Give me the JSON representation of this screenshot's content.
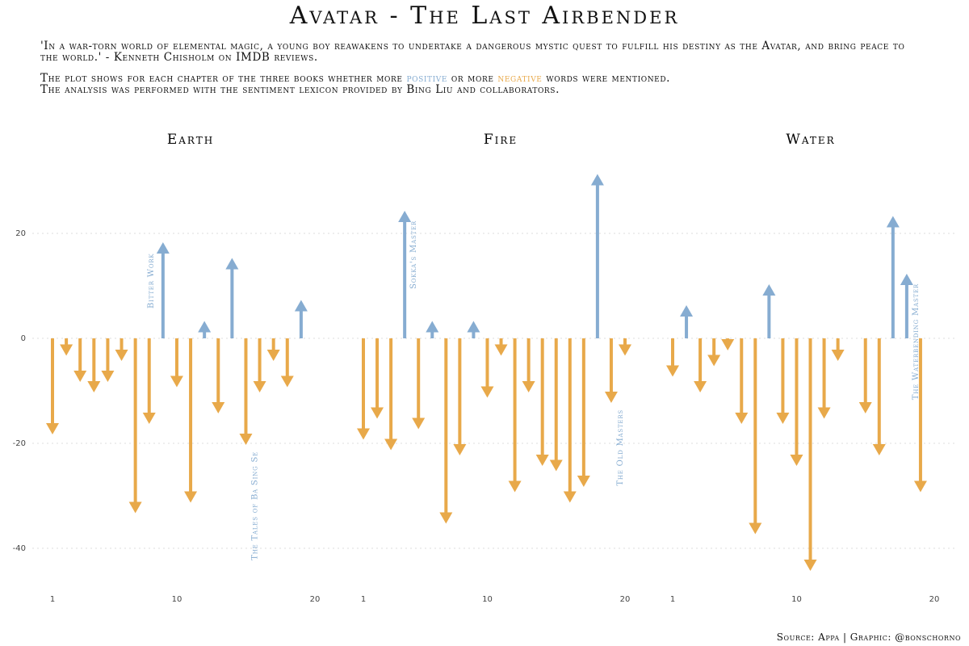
{
  "title": "Avatar - The Last Airbender",
  "subtitle": {
    "quote": "'In a war-torn world of elemental magic, a young boy reawakens to undertake a dangerous mystic quest to fulfill his destiny as the Avatar, and bring peace to the world.' - Kenneth Chisholm on IMDB reviews.",
    "line2_pre": "The plot shows for each chapter of the three books whether more ",
    "positive_word": "positive",
    "line2_mid": " or more ",
    "negative_word": "negative",
    "line2_post": " words were mentioned.",
    "line3": "The analysis was performed with the sentiment lexicon provided by Bing Liu and collaborators."
  },
  "caption": "Source: Appa | Graphic: @bonschorno",
  "colors": {
    "positive": "#86acd1",
    "negative": "#e8a94a",
    "grid": "#dddddd"
  },
  "chart_data": {
    "type": "bar",
    "style": "arrows from zero",
    "ylim": [
      -50,
      30
    ],
    "yticks": [
      -40,
      -20,
      0,
      20
    ],
    "xticks": [
      1,
      10,
      20
    ],
    "grid": "horizontal dotted",
    "panels": [
      {
        "name": "Earth",
        "values": [
          -18,
          -3,
          -8,
          -10,
          -8,
          -4,
          -33,
          -16,
          18,
          -9,
          -31,
          3,
          -14,
          15,
          -20,
          -10,
          -4,
          -9,
          7
        ],
        "annotations": [
          {
            "chapter": 9,
            "label": "Bitter Work"
          },
          {
            "chapter": 15,
            "label": "The Tales of Ba Sing Se"
          }
        ]
      },
      {
        "name": "Fire",
        "values": [
          -19,
          -15,
          -21,
          24,
          -17,
          3,
          -35,
          -22,
          3,
          -11,
          -3,
          -29,
          -10,
          -24,
          -25,
          -31,
          -28,
          31,
          -12,
          -3
        ],
        "annotations": [
          {
            "chapter": 4,
            "label": "Sokka's Master"
          },
          {
            "chapter": 19,
            "label": "The Old Masters"
          }
        ]
      },
      {
        "name": "Water",
        "values": [
          -7,
          6,
          -10,
          -5,
          -2,
          -16,
          -37,
          10,
          -16,
          -24,
          -44,
          -15,
          -4,
          0,
          -14,
          -22,
          23,
          12,
          -29
        ],
        "annotations": [
          {
            "chapter": 18,
            "label": "The Waterbending Master"
          }
        ]
      }
    ]
  }
}
